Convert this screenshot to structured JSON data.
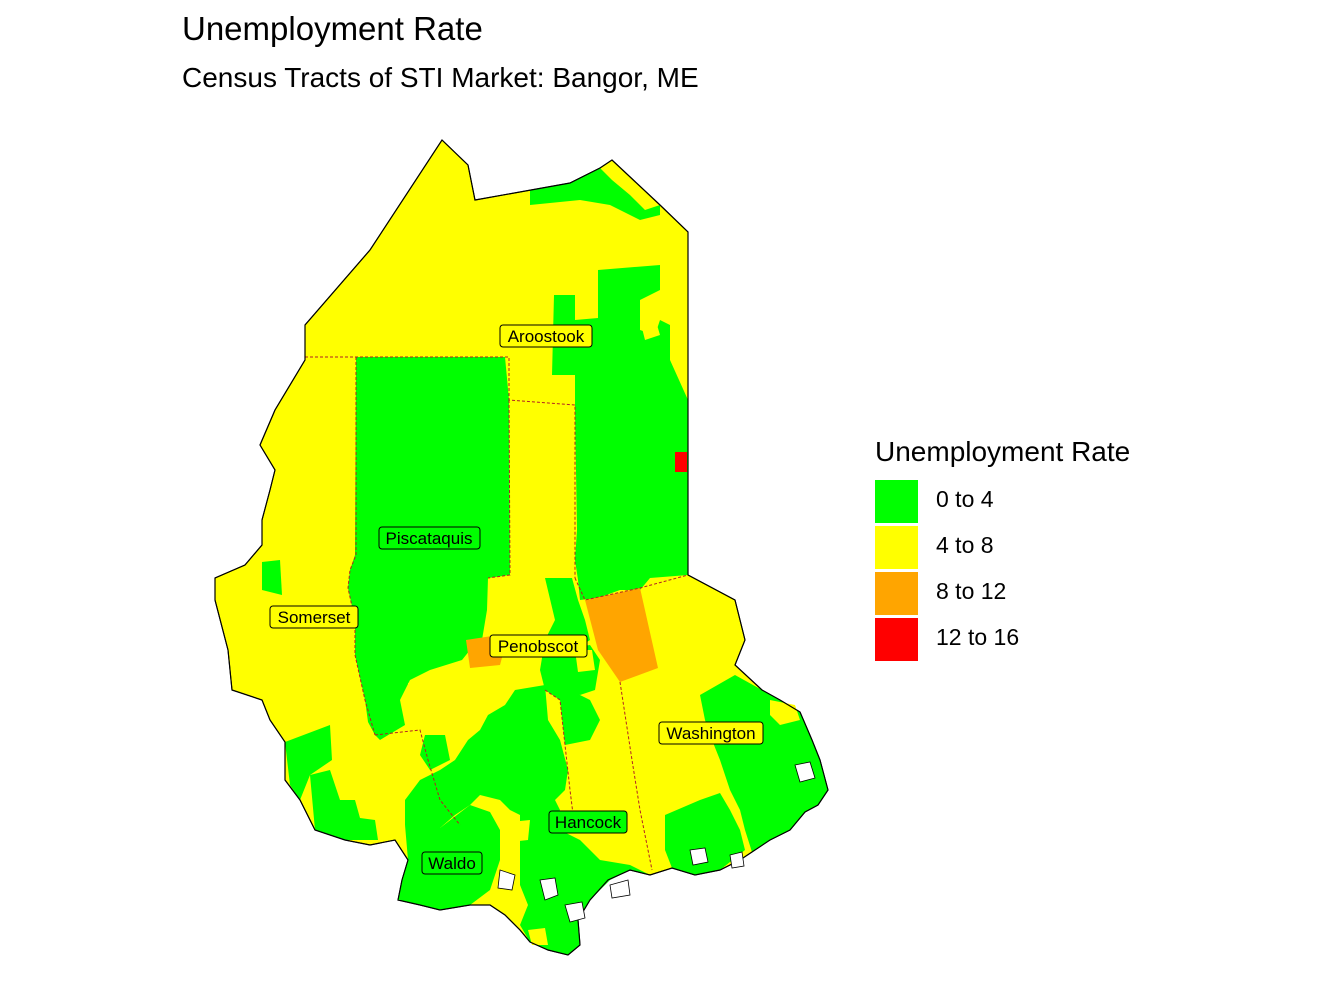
{
  "title": "Unemployment Rate",
  "subtitle": "Census Tracts of STI Market: Bangor, ME",
  "legend": {
    "title": "Unemployment Rate",
    "items": [
      {
        "label": "0 to 4",
        "color": "#00FF00"
      },
      {
        "label": "4 to 8",
        "color": "#FFFF00"
      },
      {
        "label": "8 to 12",
        "color": "#FFA500"
      },
      {
        "label": "12 to 16",
        "color": "#FF0000"
      }
    ]
  },
  "counties": {
    "aroostook": "Aroostook",
    "piscataquis": "Piscataquis",
    "somerset": "Somerset",
    "penobscot": "Penobscot",
    "washington": "Washington",
    "hancock": "Hancock",
    "waldo": "Waldo"
  },
  "colors": {
    "low": "#00FF00",
    "mid": "#FFFF00",
    "high": "#FFA500",
    "very_high": "#FF0000",
    "county_border": "#B22222"
  }
}
